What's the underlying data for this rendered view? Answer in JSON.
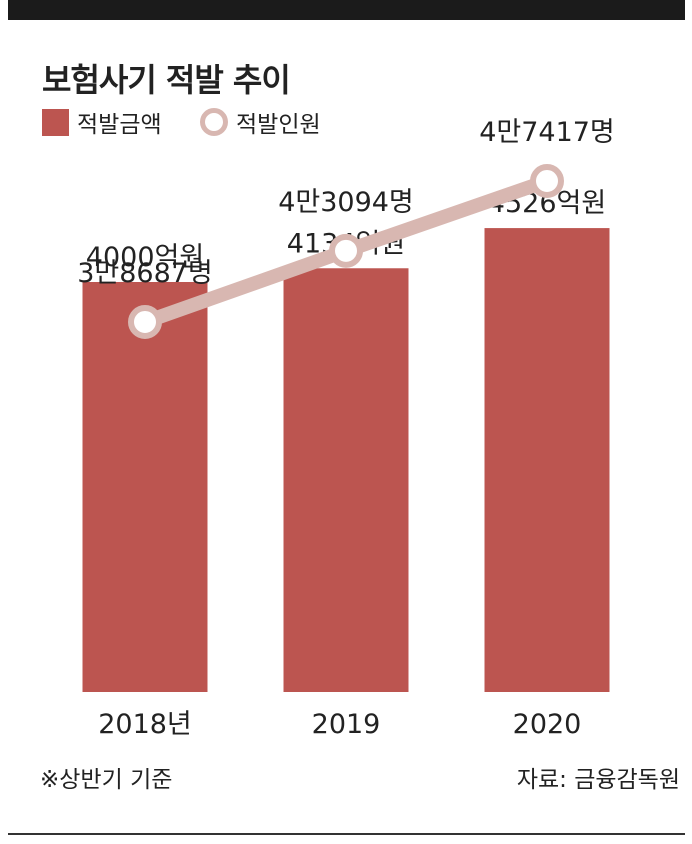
{
  "chart_data": {
    "type": "bar",
    "title": "보험사기 적발 추이",
    "categories": [
      "2018년",
      "2019",
      "2020"
    ],
    "series": [
      {
        "name": "적발금액",
        "type": "bar",
        "unit": "억원",
        "values": [
          4000,
          4134,
          4526
        ],
        "labels": [
          "4000억원",
          "4134억원",
          "4526억원"
        ],
        "color": "#bc5550"
      },
      {
        "name": "적발인원",
        "type": "line",
        "unit": "명",
        "values": [
          38687,
          43094,
          47417
        ],
        "labels": [
          "3만8687명",
          "4만3094명",
          "4만7417명"
        ],
        "color": "#d8b7b1"
      }
    ],
    "ylim": [
      0,
      6000
    ],
    "grid": false,
    "legend": "top-left"
  },
  "legend": {
    "amount_label": "적발금액",
    "people_label": "적발인원"
  },
  "footer": {
    "note": "※상반기 기준",
    "source": "자료: 금융감독원"
  }
}
